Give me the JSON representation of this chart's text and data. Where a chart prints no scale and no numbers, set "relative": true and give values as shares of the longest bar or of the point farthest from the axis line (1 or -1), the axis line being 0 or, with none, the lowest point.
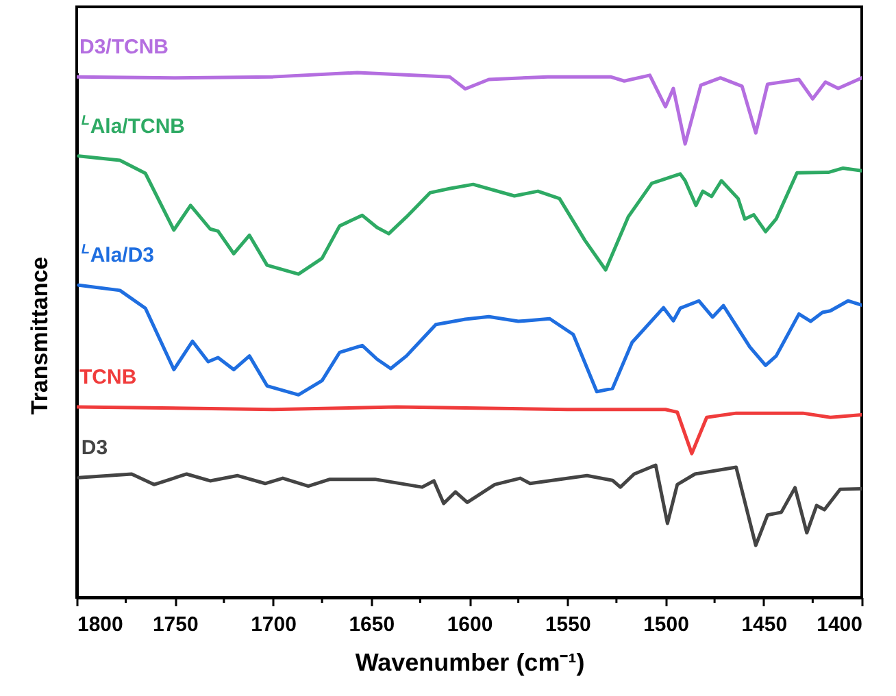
{
  "chart_data": {
    "type": "line",
    "relative": true,
    "xlabel": "Wavenumber (cm⁻¹)",
    "ylabel": "Transmittance",
    "xlim": [
      1800,
      1400
    ],
    "xticks": [
      1800,
      {
        "value": 1775,
        "label": null
      },
      1750,
      {
        "value": 1725,
        "label": null
      },
      1700,
      {
        "value": 1675,
        "label": null
      },
      1650,
      {
        "value": 1625,
        "label": null
      },
      1600,
      {
        "value": 1575,
        "label": null
      },
      1550,
      {
        "value": 1525,
        "label": null
      },
      1500,
      {
        "value": 1475,
        "label": null
      },
      1450,
      {
        "value": 1425,
        "label": null
      },
      1400
    ],
    "series": [
      {
        "name": "D3/TCNB",
        "color": "#b46ee0",
        "x": [
          1800,
          1750,
          1700,
          1657,
          1610,
          1602,
          1590,
          1560,
          1528,
          1521,
          1508,
          1500,
          1496,
          1490,
          1482,
          1472,
          1461,
          1454,
          1448,
          1432,
          1425,
          1418.5,
          1412,
          1400
        ],
        "values": [
          0.992,
          0.99,
          0.992,
          1.0,
          0.992,
          0.969,
          0.987,
          0.992,
          0.992,
          0.984,
          0.995,
          0.935,
          0.97,
          0.864,
          0.976,
          0.99,
          0.974,
          0.885,
          0.978,
          0.987,
          0.95,
          0.982,
          0.97,
          0.99
        ]
      },
      {
        "name": "$^{L}$Ala/TCNB",
        "color": "#2eaa64",
        "x": [
          1799,
          1778,
          1765,
          1750.5,
          1742,
          1732,
          1728,
          1720,
          1712,
          1703,
          1687,
          1675,
          1666,
          1654.5,
          1647,
          1641,
          1632,
          1620,
          1610,
          1598,
          1577,
          1565,
          1554,
          1541,
          1530.5,
          1519,
          1507,
          1492.5,
          1490,
          1484.5,
          1481,
          1476.5,
          1471.5,
          1463,
          1459.6,
          1455,
          1449,
          1443.6,
          1433,
          1417,
          1409.5,
          1400
        ],
        "values": [
          0.841,
          0.833,
          0.808,
          0.7,
          0.747,
          0.702,
          0.698,
          0.655,
          0.69,
          0.633,
          0.616,
          0.646,
          0.708,
          0.728,
          0.705,
          0.693,
          0.725,
          0.771,
          0.779,
          0.787,
          0.765,
          0.774,
          0.76,
          0.68,
          0.624,
          0.725,
          0.789,
          0.807,
          0.794,
          0.747,
          0.774,
          0.764,
          0.794,
          0.76,
          0.721,
          0.729,
          0.697,
          0.721,
          0.809,
          0.81,
          0.818,
          0.813
        ]
      },
      {
        "name": "$^{L}$Ala/D3",
        "color": "#1f6ee0",
        "x": [
          1799,
          1778,
          1765,
          1750.5,
          1741,
          1733,
          1728,
          1720,
          1712,
          1703,
          1687,
          1675,
          1666,
          1654.5,
          1647,
          1640,
          1632,
          1617,
          1602,
          1590,
          1575,
          1559,
          1547,
          1535,
          1527,
          1517,
          1501,
          1496,
          1492.5,
          1483,
          1476,
          1470.5,
          1457,
          1449,
          1443.6,
          1432,
          1426,
          1420,
          1416,
          1407,
          1400
        ],
        "values": [
          0.595,
          0.585,
          0.551,
          0.434,
          0.488,
          0.449,
          0.457,
          0.434,
          0.46,
          0.403,
          0.386,
          0.413,
          0.467,
          0.48,
          0.454,
          0.436,
          0.46,
          0.52,
          0.53,
          0.535,
          0.526,
          0.531,
          0.501,
          0.392,
          0.398,
          0.486,
          0.552,
          0.527,
          0.551,
          0.565,
          0.534,
          0.556,
          0.477,
          0.442,
          0.46,
          0.54,
          0.526,
          0.543,
          0.546,
          0.565,
          0.557
        ]
      },
      {
        "name": "TCNB",
        "color": "#f03c3c",
        "x": [
          1800,
          1700,
          1637,
          1550,
          1500,
          1494,
          1486.6,
          1479,
          1464,
          1430,
          1416,
          1400
        ],
        "values": [
          0.363,
          0.358,
          0.363,
          0.358,
          0.358,
          0.353,
          0.274,
          0.343,
          0.351,
          0.351,
          0.343,
          0.348
        ]
      },
      {
        "name": "D3",
        "color": "#444444",
        "x": [
          1799,
          1772,
          1760.6,
          1744,
          1732,
          1718,
          1704,
          1695,
          1682,
          1671,
          1648,
          1624,
          1618,
          1613,
          1607,
          1601,
          1587,
          1574,
          1569,
          1540,
          1527,
          1523,
          1516,
          1505,
          1499,
          1494,
          1485,
          1464,
          1454,
          1448,
          1441,
          1434,
          1428,
          1423,
          1419,
          1411,
          1400
        ],
        "values": [
          0.228,
          0.235,
          0.215,
          0.235,
          0.222,
          0.232,
          0.217,
          0.227,
          0.212,
          0.225,
          0.225,
          0.21,
          0.222,
          0.179,
          0.201,
          0.181,
          0.215,
          0.227,
          0.217,
          0.232,
          0.223,
          0.21,
          0.235,
          0.252,
          0.141,
          0.215,
          0.235,
          0.248,
          0.099,
          0.157,
          0.162,
          0.209,
          0.123,
          0.175,
          0.167,
          0.206,
          0.207
        ]
      }
    ]
  }
}
